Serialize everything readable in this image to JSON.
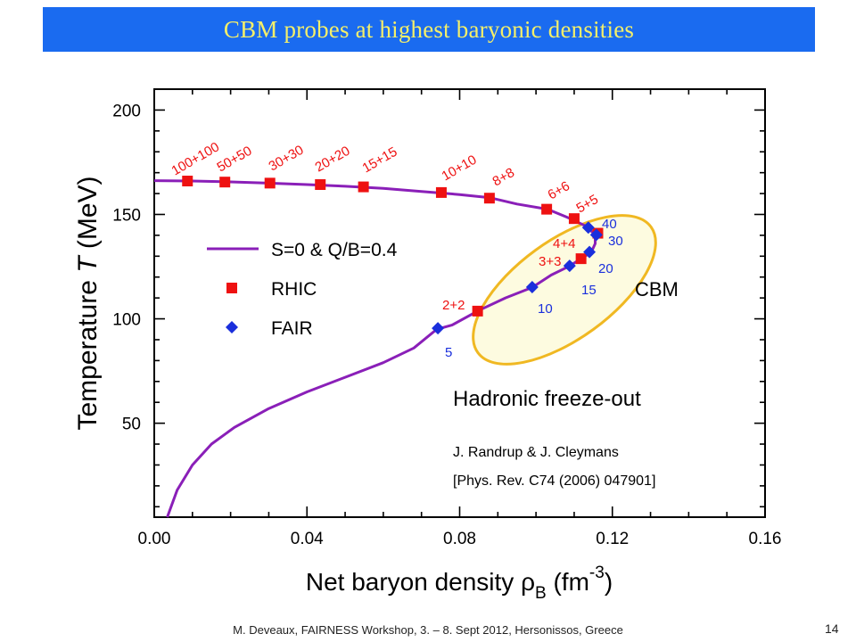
{
  "header": {
    "title": "CBM probes at highest baryonic densities"
  },
  "footer": {
    "text": "M. Deveaux, FAIRNESS Workshop, 3. – 8. Sept 2012, Hersonissos, Greece",
    "page": "14"
  },
  "colors": {
    "title_bg": "#1a6bf0",
    "title_fg": "#f4ef6a",
    "curve": "#8a1fb8",
    "rhic": "#ee1111",
    "fair": "#1a2fdc",
    "ellipse_stroke": "#f0b822",
    "ellipse_fill": "#fdfbe0"
  },
  "chart_data": {
    "type": "scatter",
    "xlabel_main": "Net baryon density ρ",
    "xlabel_sub": "B",
    "xlabel_unit_open": " (fm",
    "xlabel_exp": "-3",
    "xlabel_close": ")",
    "ylabel_pre": "Temperature ",
    "ylabel_var": "T",
    "ylabel_post": " (MeV)",
    "xlim": [
      0.0,
      0.16
    ],
    "ylim": [
      5,
      210
    ],
    "x_ticks": [
      "0.00",
      "0.04",
      "0.08",
      "0.12",
      "0.16"
    ],
    "y_ticks": [
      "50",
      "100",
      "150",
      "200"
    ],
    "series": [
      {
        "name": "S=0 & Q/B=0.4",
        "kind": "line",
        "points": [
          [
            0.0034,
            5
          ],
          [
            0.006,
            18
          ],
          [
            0.01,
            30
          ],
          [
            0.015,
            40
          ],
          [
            0.021,
            48
          ],
          [
            0.03,
            57
          ],
          [
            0.04,
            65
          ],
          [
            0.05,
            72
          ],
          [
            0.06,
            79
          ],
          [
            0.068,
            86
          ],
          [
            0.074,
            95
          ],
          [
            0.078,
            97
          ],
          [
            0.085,
            104
          ],
          [
            0.092,
            110
          ],
          [
            0.099,
            115
          ],
          [
            0.104,
            121
          ],
          [
            0.1085,
            125
          ],
          [
            0.112,
            129
          ],
          [
            0.1145,
            132
          ],
          [
            0.1155,
            136
          ],
          [
            0.1155,
            140
          ],
          [
            0.1135,
            144
          ],
          [
            0.109,
            148
          ],
          [
            0.103,
            152.5
          ],
          [
            0.095,
            155
          ],
          [
            0.088,
            158
          ],
          [
            0.08,
            159.5
          ],
          [
            0.07,
            161
          ],
          [
            0.06,
            162.5
          ],
          [
            0.05,
            163.5
          ],
          [
            0.04,
            164.3
          ],
          [
            0.03,
            165
          ],
          [
            0.02,
            165.6
          ],
          [
            0.01,
            166
          ],
          [
            0.0,
            166.2
          ]
        ]
      },
      {
        "name": "RHIC",
        "kind": "square",
        "points": [
          {
            "x": 0.0087,
            "y": 166,
            "label": "100+100"
          },
          {
            "x": 0.0185,
            "y": 165.5,
            "label": "50+50"
          },
          {
            "x": 0.0303,
            "y": 165,
            "label": "30+30"
          },
          {
            "x": 0.0435,
            "y": 164.3,
            "label": "20+20"
          },
          {
            "x": 0.0548,
            "y": 163.2,
            "label": "15+15"
          },
          {
            "x": 0.0752,
            "y": 160.5,
            "label": "10+10"
          },
          {
            "x": 0.0878,
            "y": 157.8,
            "label": "8+8"
          },
          {
            "x": 0.1028,
            "y": 152.5,
            "label": "6+6"
          },
          {
            "x": 0.11,
            "y": 148,
            "label": "5+5"
          },
          {
            "x": 0.1162,
            "y": 141,
            "label": "4+4"
          },
          {
            "x": 0.1118,
            "y": 128.8,
            "label": "3+3"
          },
          {
            "x": 0.0847,
            "y": 103.7,
            "label": "2+2"
          }
        ]
      },
      {
        "name": "FAIR",
        "kind": "diamond",
        "points": [
          {
            "x": 0.0743,
            "y": 95.5,
            "label": "5"
          },
          {
            "x": 0.099,
            "y": 115.2,
            "label": "10"
          },
          {
            "x": 0.1088,
            "y": 125.4,
            "label": "15"
          },
          {
            "x": 0.114,
            "y": 132,
            "label": "20"
          },
          {
            "x": 0.1158,
            "y": 140.2,
            "label": "30"
          },
          {
            "x": 0.1137,
            "y": 143.7,
            "label": "40"
          }
        ]
      }
    ],
    "legend_placement": "left",
    "annotations": {
      "cbm_label": "CBM",
      "freezeout": "Hadronic freeze-out",
      "ref1": "J. Randrup & J. Cleymans",
      "ref2": "[Phys. Rev. C74 (2006) 047901]"
    },
    "grid": false
  }
}
